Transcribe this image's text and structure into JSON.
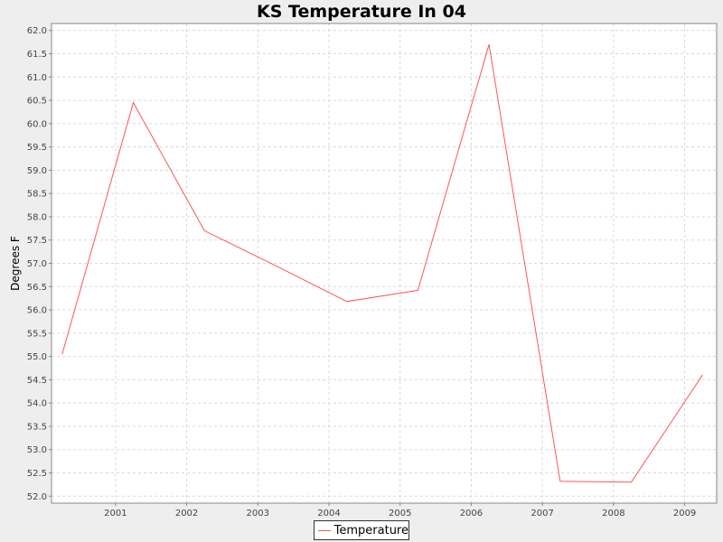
{
  "chart_data": {
    "type": "line",
    "title": "KS Temperature In 04",
    "xlabel": "",
    "ylabel": "Degrees F",
    "x": [
      2000.25,
      2001.25,
      2002.25,
      2003.25,
      2004.25,
      2005.25,
      2006.25,
      2007.25,
      2008.25,
      2009.25
    ],
    "x_ticks": [
      "2001",
      "2002",
      "2003",
      "2004",
      "2005",
      "2006",
      "2007",
      "2008",
      "2009"
    ],
    "xlim": [
      2000.1,
      2009.45
    ],
    "y_ticks": [
      "52.0",
      "52.5",
      "53.0",
      "53.5",
      "54.0",
      "54.5",
      "55.0",
      "55.5",
      "56.0",
      "56.5",
      "57.0",
      "57.5",
      "58.0",
      "58.5",
      "59.0",
      "59.5",
      "60.0",
      "60.5",
      "61.0",
      "61.5",
      "62.0"
    ],
    "ylim": [
      51.85,
      62.15
    ],
    "series": [
      {
        "name": "Temperature",
        "color": "#ff5555",
        "values": [
          55.05,
          60.45,
          57.7,
          56.95,
          56.18,
          56.42,
          61.7,
          52.32,
          52.3,
          54.6
        ]
      }
    ],
    "grid": true,
    "legend_position": "bottom-center"
  }
}
